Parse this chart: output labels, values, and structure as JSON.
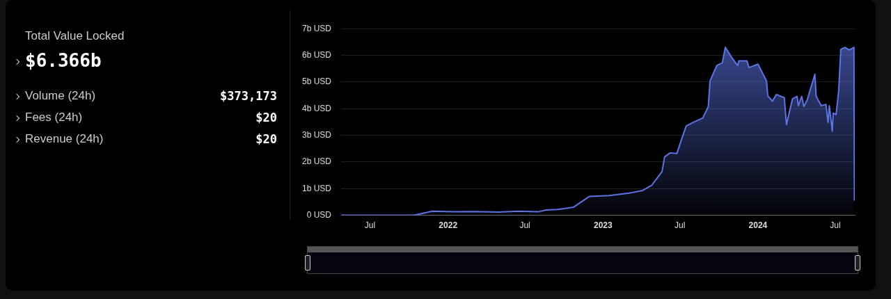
{
  "chart_data": [
    {
      "type": "other",
      "title": "Total Value Locked",
      "annotations": [
        "$6.366b",
        "Volume (24h)",
        "$373,173",
        "Fees (24h)",
        "$20",
        "Revenue (24h)",
        "$20"
      ]
    },
    {
      "type": "area",
      "xlim": [
        "2021-04-24",
        "2024-08-16"
      ],
      "ylim": [
        0,
        7
      ],
      "xticks": [
        {
          "value": "2021-07-01",
          "label": "Jul"
        },
        {
          "value": "2022-01-01",
          "label": "2022"
        },
        {
          "value": "2022-07-01",
          "label": "Jul"
        },
        {
          "value": "2023-01-01",
          "label": "2023"
        },
        {
          "value": "2023-07-01",
          "label": "Jul"
        },
        {
          "value": "2024-01-01",
          "label": "2024"
        },
        {
          "value": "2024-07-01",
          "label": "Jul"
        }
      ],
      "yticks": [
        {
          "value": 0,
          "label": "0 USD"
        },
        {
          "value": 1,
          "label": "1b USD"
        },
        {
          "value": 2,
          "label": "2b USD"
        },
        {
          "value": 3,
          "label": "3b USD"
        },
        {
          "value": 4,
          "label": "4b USD"
        },
        {
          "value": 5,
          "label": "5b USD"
        },
        {
          "value": 6,
          "label": "6b USD"
        },
        {
          "value": 7,
          "label": "7b USD"
        }
      ],
      "grid": "y",
      "legend": false,
      "marker": "none",
      "series": [
        {
          "color": "#5b74e6",
          "x": [
            "2021-04-24",
            "2021-10-13",
            "2021-11-25",
            "2022-01-15",
            "2022-03-01",
            "2022-05-01",
            "2022-06-15",
            "2022-08-01",
            "2022-08-20",
            "2022-09-15",
            "2022-10-01",
            "2022-10-23",
            "2022-11-30",
            "2023-01-15",
            "2023-03-03",
            "2023-04-04",
            "2023-04-26",
            "2023-05-20",
            "2023-05-26",
            "2023-06-08",
            "2023-06-24",
            "2023-07-06",
            "2023-07-16",
            "2023-08-01",
            "2023-08-24",
            "2023-09-06",
            "2023-09-10",
            "2023-09-26",
            "2023-10-09",
            "2023-10-16",
            "2023-10-31",
            "2023-11-14",
            "2023-11-17",
            "2023-12-06",
            "2023-12-11",
            "2024-01-01",
            "2024-01-21",
            "2024-01-24",
            "2024-02-04",
            "2024-02-13",
            "2024-03-03",
            "2024-03-08",
            "2024-03-22",
            "2024-04-02",
            "2024-04-05",
            "2024-04-13",
            "2024-04-18",
            "2024-04-26",
            "2024-05-14",
            "2024-05-17",
            "2024-05-29",
            "2024-06-09",
            "2024-06-14",
            "2024-06-17",
            "2024-06-24",
            "2024-06-26",
            "2024-07-03",
            "2024-07-09",
            "2024-07-14",
            "2024-07-24",
            "2024-08-03",
            "2024-08-14",
            "2024-08-15"
          ],
          "values": [
            0,
            0,
            0.15,
            0.13,
            0.14,
            0.12,
            0.15,
            0.13,
            0.2,
            0.22,
            0.25,
            0.3,
            0.71,
            0.74,
            0.83,
            0.93,
            1.13,
            1.64,
            2.19,
            2.34,
            2.32,
            2.9,
            3.35,
            3.48,
            3.65,
            4.08,
            5.04,
            5.62,
            5.72,
            6.3,
            5.92,
            5.62,
            5.79,
            5.79,
            5.54,
            5.67,
            5.04,
            4.48,
            4.28,
            4.53,
            4.41,
            3.4,
            4.36,
            4.46,
            4.11,
            4.46,
            4.08,
            4.33,
            5.29,
            4.46,
            4.11,
            4.16,
            3.48,
            4.11,
            3.15,
            3.83,
            3.78,
            4.66,
            6.22,
            6.3,
            6.2,
            6.3,
            0.55
          ]
        }
      ]
    }
  ]
}
